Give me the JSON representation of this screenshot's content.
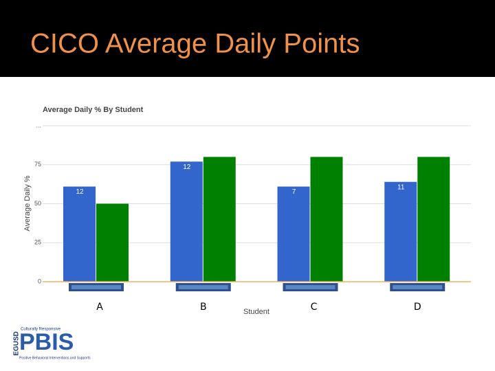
{
  "slide_title": "CICO Average Daily Points",
  "logo": {
    "side": "EGUSD",
    "top": "Culturally Responsive",
    "main": "PBIS",
    "bottom": "Positive Behavioral Interventions and Supports"
  },
  "chart_data": {
    "type": "bar",
    "title": "Average Daily % By Student",
    "x_label": "Student",
    "y_label": "Average Daily %",
    "categories": [
      "A",
      "B",
      "C",
      "D"
    ],
    "series": [
      {
        "color": "#3366cc",
        "values": [
          61,
          77,
          61,
          64
        ],
        "counts": [
          12,
          12,
          7,
          11
        ]
      },
      {
        "color": "#008000",
        "values": [
          50,
          80,
          80,
          80
        ]
      }
    ],
    "ylim": [
      0,
      100
    ],
    "yticks": [
      0,
      25,
      50,
      75,
      {
        "value": 100,
        "label": "..."
      }
    ],
    "grid": true
  }
}
